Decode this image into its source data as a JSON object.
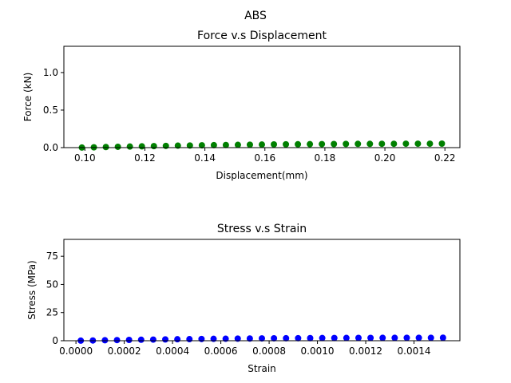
{
  "figure": {
    "suptitle": "ABS"
  },
  "colors": {
    "axes": "#000000",
    "background": "#ffffff"
  },
  "chart_data": [
    {
      "type": "scatter",
      "title": "Force v.s Displacement",
      "xlabel": "Displacement(mm)",
      "ylabel": "Force (kN)",
      "xlim": [
        0.093,
        0.225
      ],
      "ylim": [
        0,
        1.35
      ],
      "xticks": [
        0.1,
        0.12,
        0.14,
        0.16,
        0.18,
        0.2,
        0.22
      ],
      "xtick_labels": [
        "0.10",
        "0.12",
        "0.14",
        "0.16",
        "0.18",
        "0.20",
        "0.22"
      ],
      "yticks": [
        0.0,
        0.5,
        1.0
      ],
      "ytick_labels": [
        "0.0",
        "0.5",
        "1.0"
      ],
      "grid": false,
      "series": [
        {
          "color": "#008000",
          "x": [
            0.099,
            0.103,
            0.107,
            0.111,
            0.115,
            0.119,
            0.123,
            0.127,
            0.131,
            0.135,
            0.139,
            0.143,
            0.147,
            0.151,
            0.155,
            0.159,
            0.163,
            0.167,
            0.171,
            0.175,
            0.179,
            0.183,
            0.187,
            0.191,
            0.195,
            0.199,
            0.203,
            0.207,
            0.211,
            0.215,
            0.219
          ],
          "y": [
            0.001,
            0.004,
            0.008,
            0.011,
            0.014,
            0.017,
            0.02,
            0.023,
            0.026,
            0.028,
            0.031,
            0.033,
            0.035,
            0.037,
            0.039,
            0.041,
            0.043,
            0.044,
            0.045,
            0.046,
            0.047,
            0.048,
            0.049,
            0.05,
            0.05,
            0.051,
            0.051,
            0.052,
            0.052,
            0.052,
            0.053
          ]
        }
      ]
    },
    {
      "type": "scatter",
      "title": "Stress v.s Strain",
      "xlabel": "Strain",
      "ylabel": "Stress (MPa)",
      "xlim": [
        -5e-05,
        0.00159
      ],
      "ylim": [
        0,
        90
      ],
      "xticks": [
        0.0,
        0.0002,
        0.0004,
        0.0006,
        0.0008,
        0.001,
        0.0012,
        0.0014
      ],
      "xtick_labels": [
        "0.0000",
        "0.0002",
        "0.0004",
        "0.0006",
        "0.0008",
        "0.0010",
        "0.0012",
        "0.0014"
      ],
      "yticks": [
        0,
        25,
        50,
        75
      ],
      "ytick_labels": [
        "0",
        "25",
        "50",
        "75"
      ],
      "grid": false,
      "series": [
        {
          "color": "#0000ff",
          "x": [
            2e-05,
            7e-05,
            0.00012,
            0.00017,
            0.00022,
            0.00027,
            0.00032,
            0.00037,
            0.00042,
            0.00047,
            0.00052,
            0.00057,
            0.00062,
            0.00067,
            0.00072,
            0.00077,
            0.00082,
            0.00087,
            0.00092,
            0.00097,
            0.00102,
            0.00107,
            0.00112,
            0.00117,
            0.00122,
            0.00127,
            0.00132,
            0.00137,
            0.00142,
            0.00147,
            0.00152
          ],
          "y": [
            0.05,
            0.2,
            0.4,
            0.55,
            0.7,
            0.85,
            1.0,
            1.15,
            1.3,
            1.4,
            1.55,
            1.65,
            1.75,
            1.85,
            1.95,
            2.05,
            2.15,
            2.2,
            2.25,
            2.3,
            2.35,
            2.4,
            2.45,
            2.5,
            2.5,
            2.55,
            2.55,
            2.6,
            2.6,
            2.6,
            2.65
          ]
        }
      ]
    }
  ]
}
